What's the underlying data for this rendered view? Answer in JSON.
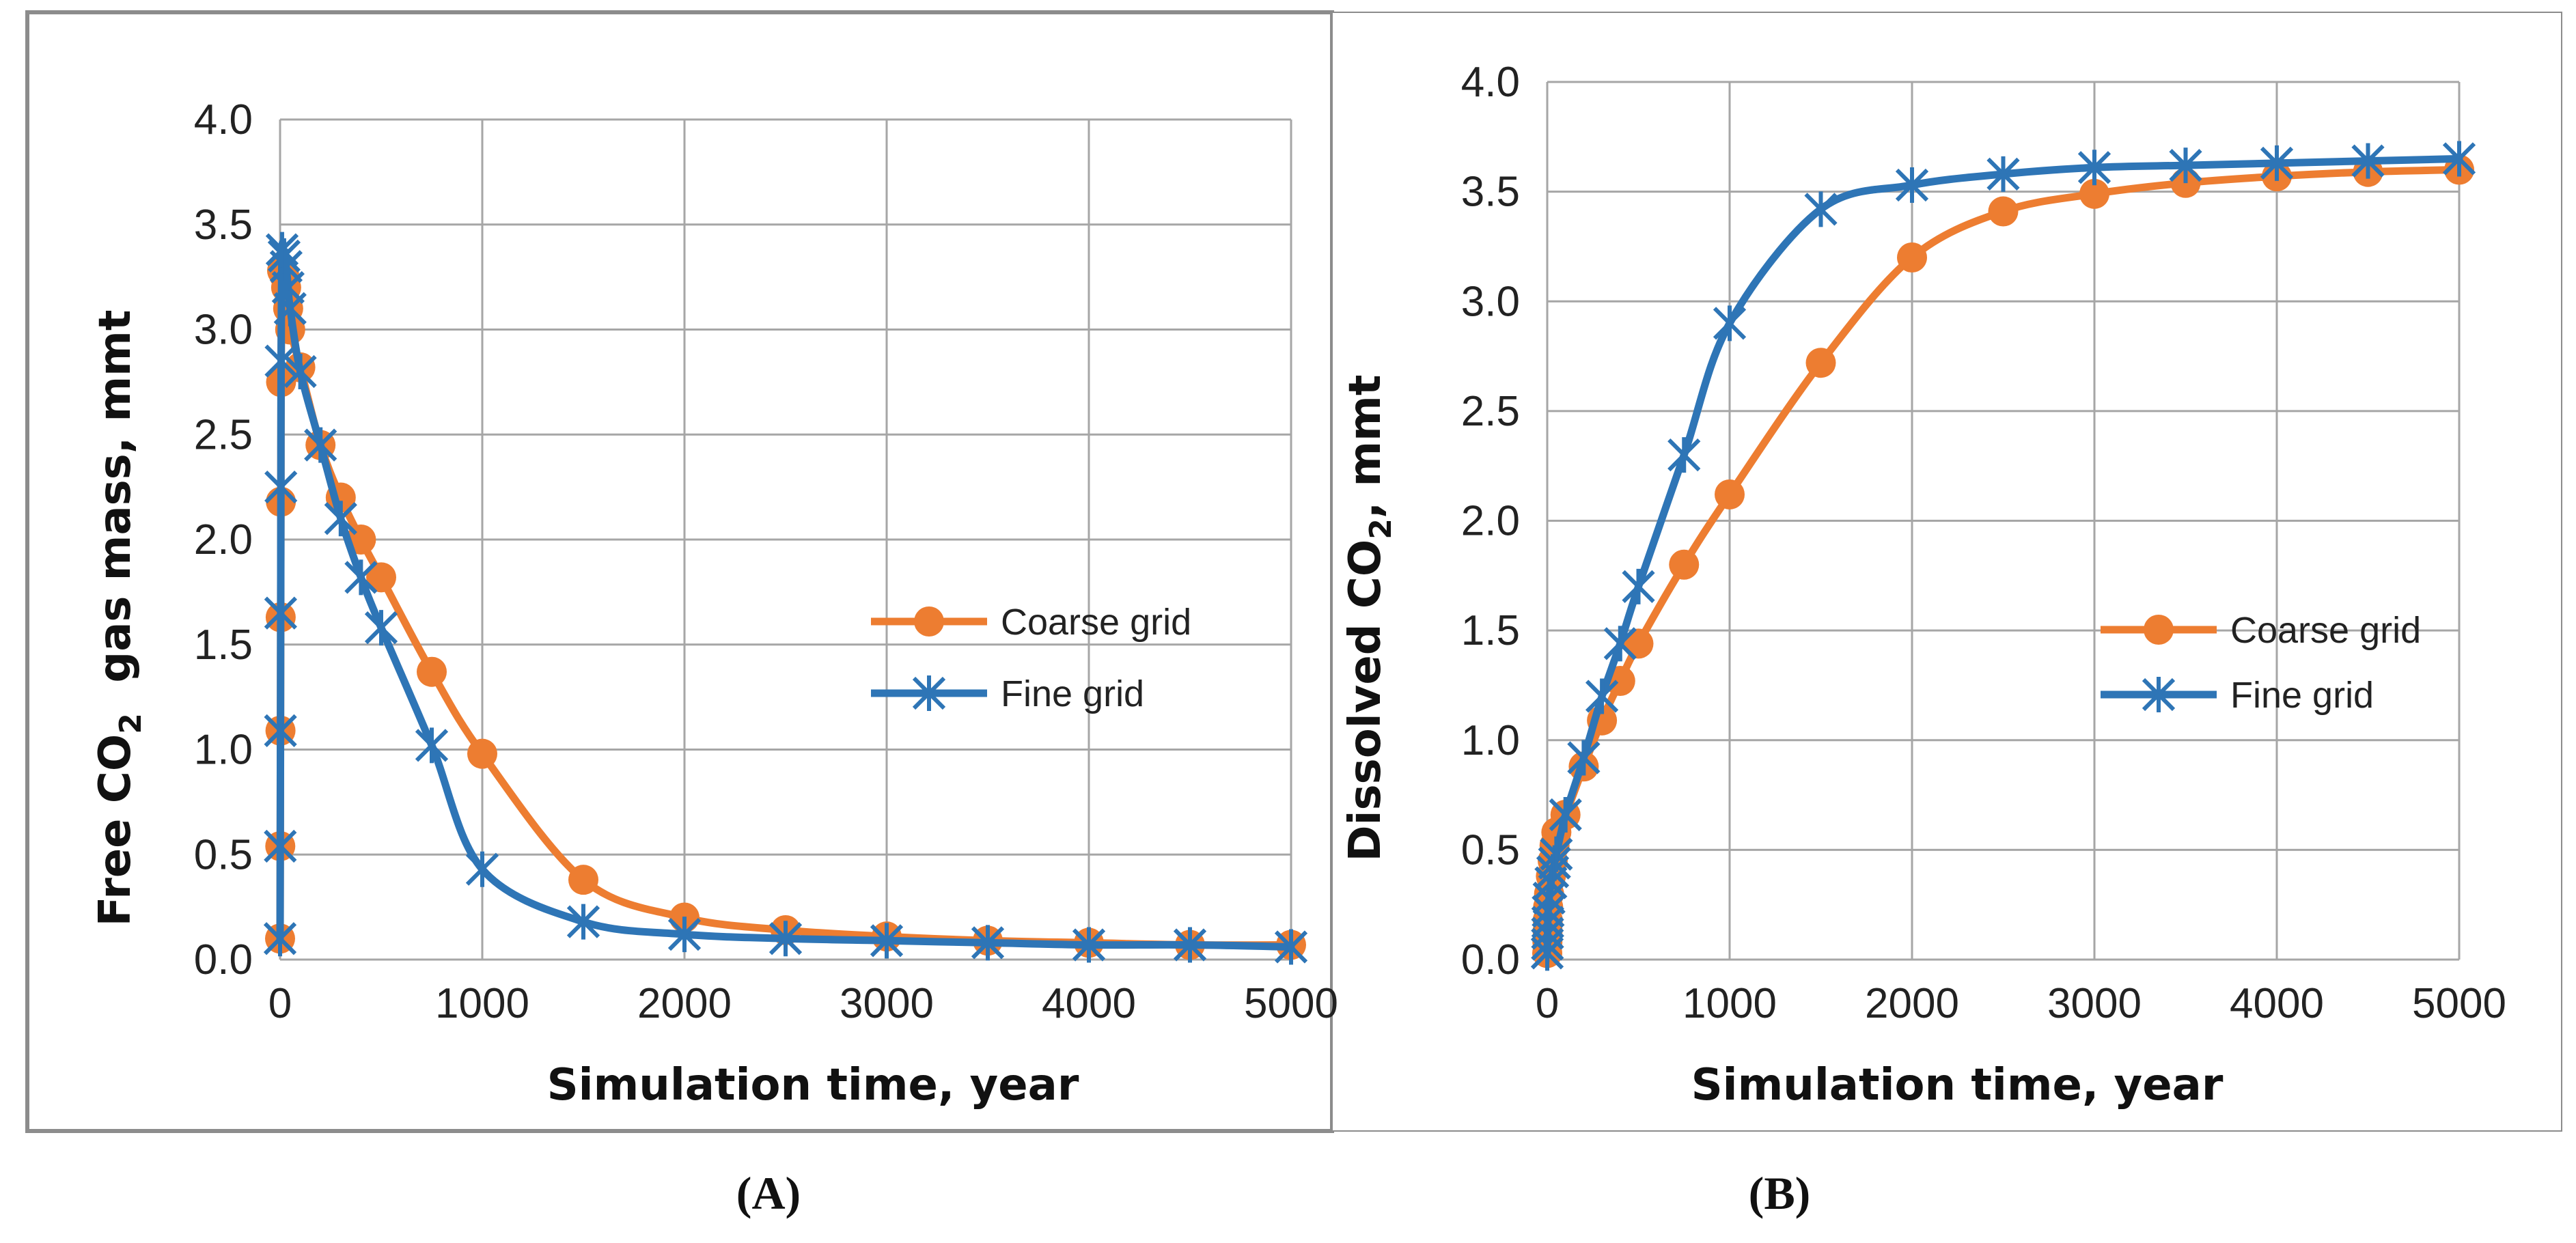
{
  "colors": {
    "coarse": "#ED7D31",
    "fine": "#2E75B6",
    "grid": "#A6A6A6",
    "frame": "#8C8C8C"
  },
  "chart_data": [
    {
      "type": "line",
      "panel_label": "(A)",
      "ylabel_parts": {
        "pre": "Free CO",
        "sub": "2",
        "post": "  gas mass, mmt"
      },
      "xlabel": "Simulation time, year",
      "xlim": [
        0,
        5000
      ],
      "ylim": [
        0,
        4.0
      ],
      "xticks": [
        0,
        1000,
        2000,
        3000,
        4000,
        5000
      ],
      "yticks": [
        "0.0",
        "0.5",
        "1.0",
        "1.5",
        "2.0",
        "2.5",
        "3.0",
        "3.5",
        "4.0"
      ],
      "legend": {
        "position": "center-right",
        "entries": [
          "Coarse grid",
          "Fine grid"
        ]
      },
      "series": [
        {
          "name": "Coarse grid",
          "marker": "circle",
          "x": [
            0,
            1,
            2,
            3,
            4,
            5,
            10,
            20,
            30,
            40,
            50,
            100,
            200,
            300,
            400,
            500,
            750,
            1000,
            1500,
            2000,
            2500,
            3000,
            3500,
            4000,
            4500,
            5000
          ],
          "y": [
            0.1,
            0.54,
            1.09,
            1.63,
            2.18,
            2.75,
            3.28,
            3.26,
            3.2,
            3.1,
            3.0,
            2.82,
            2.45,
            2.2,
            2.0,
            1.82,
            1.37,
            0.98,
            0.38,
            0.2,
            0.14,
            0.11,
            0.09,
            0.08,
            0.07,
            0.07
          ]
        },
        {
          "name": "Fine grid",
          "marker": "asterisk",
          "x": [
            0,
            1,
            2,
            3,
            4,
            5,
            10,
            20,
            30,
            40,
            50,
            100,
            200,
            300,
            400,
            500,
            750,
            1000,
            1500,
            2000,
            2500,
            3000,
            3500,
            4000,
            4500,
            5000
          ],
          "y": [
            0.1,
            0.54,
            1.09,
            1.65,
            2.25,
            2.85,
            3.38,
            3.35,
            3.3,
            3.2,
            3.1,
            2.8,
            2.45,
            2.1,
            1.82,
            1.58,
            1.02,
            0.43,
            0.18,
            0.12,
            0.1,
            0.09,
            0.08,
            0.07,
            0.07,
            0.06
          ]
        }
      ]
    },
    {
      "type": "line",
      "panel_label": "(B)",
      "ylabel_parts": {
        "pre": "Dissolved CO",
        "sub": "2",
        "post": ", mmt"
      },
      "xlabel": "Simulation time, year",
      "xlim": [
        0,
        5000
      ],
      "ylim": [
        0,
        4.0
      ],
      "xticks": [
        0,
        1000,
        2000,
        3000,
        4000,
        5000
      ],
      "yticks": [
        "0.0",
        "0.5",
        "1.0",
        "1.5",
        "2.0",
        "2.5",
        "3.0",
        "3.5",
        "4.0"
      ],
      "legend": {
        "position": "center-right",
        "entries": [
          "Coarse grid",
          "Fine grid"
        ]
      },
      "series": [
        {
          "name": "Coarse grid",
          "marker": "circle",
          "x": [
            0,
            1,
            2,
            3,
            5,
            10,
            20,
            30,
            40,
            50,
            100,
            200,
            300,
            400,
            500,
            750,
            1000,
            1500,
            2000,
            2500,
            3000,
            3500,
            4000,
            4500,
            5000
          ],
          "y": [
            0.03,
            0.08,
            0.13,
            0.18,
            0.24,
            0.3,
            0.38,
            0.45,
            0.52,
            0.58,
            0.66,
            0.88,
            1.09,
            1.27,
            1.44,
            1.8,
            2.12,
            2.72,
            3.2,
            3.41,
            3.49,
            3.54,
            3.57,
            3.59,
            3.6
          ]
        },
        {
          "name": "Fine grid",
          "marker": "asterisk",
          "x": [
            0,
            1,
            2,
            3,
            5,
            10,
            20,
            30,
            40,
            50,
            100,
            200,
            300,
            400,
            500,
            750,
            1000,
            1500,
            2000,
            2500,
            3000,
            3500,
            4000,
            4500,
            5000
          ],
          "y": [
            0.03,
            0.07,
            0.12,
            0.17,
            0.22,
            0.28,
            0.35,
            0.4,
            0.44,
            0.48,
            0.66,
            0.92,
            1.2,
            1.44,
            1.7,
            2.3,
            2.9,
            3.42,
            3.53,
            3.58,
            3.61,
            3.62,
            3.63,
            3.64,
            3.65
          ]
        }
      ]
    }
  ]
}
